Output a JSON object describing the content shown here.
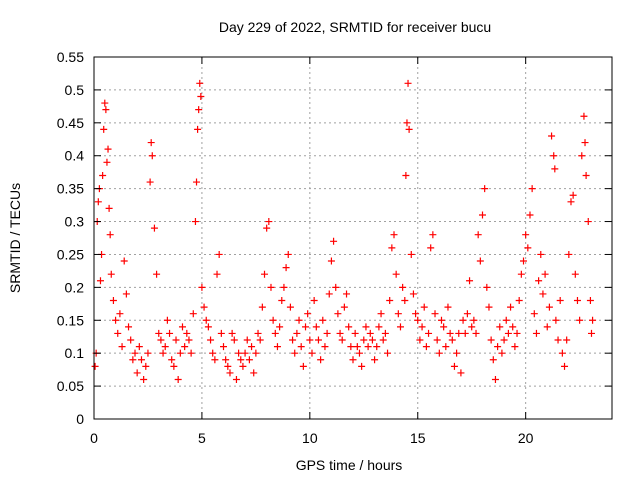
{
  "chart_data": {
    "type": "scatter",
    "title": "Day 229 of 2022, SRMTID for receiver bucu",
    "xlabel": "GPS time / hours",
    "ylabel": "SRMTID / TECUs",
    "xlim": [
      0,
      24
    ],
    "ylim": [
      0,
      0.55
    ],
    "xticks": [
      0,
      5,
      10,
      15,
      20
    ],
    "xtick_labels": [
      "0",
      "5",
      "10",
      "15",
      "20"
    ],
    "yticks": [
      0,
      0.05,
      0.1,
      0.15,
      0.2,
      0.25,
      0.3,
      0.35,
      0.4,
      0.45,
      0.5,
      0.55
    ],
    "ytick_labels": [
      "0",
      "0.05",
      "0.1",
      "0.15",
      "0.2",
      "0.25",
      "0.3",
      "0.35",
      "0.4",
      "0.45",
      "0.5",
      "0.55"
    ],
    "grid": true,
    "marker": "+",
    "color": "#ff0000",
    "series": [
      {
        "name": "SRMTID",
        "points": [
          [
            0.05,
            0.08
          ],
          [
            0.1,
            0.1
          ],
          [
            0.15,
            0.3
          ],
          [
            0.2,
            0.33
          ],
          [
            0.25,
            0.35
          ],
          [
            0.3,
            0.21
          ],
          [
            0.35,
            0.25
          ],
          [
            0.4,
            0.37
          ],
          [
            0.45,
            0.44
          ],
          [
            0.5,
            0.48
          ],
          [
            0.55,
            0.47
          ],
          [
            0.6,
            0.39
          ],
          [
            0.65,
            0.41
          ],
          [
            0.7,
            0.32
          ],
          [
            0.75,
            0.28
          ],
          [
            0.8,
            0.22
          ],
          [
            0.9,
            0.18
          ],
          [
            1.0,
            0.15
          ],
          [
            1.1,
            0.13
          ],
          [
            1.2,
            0.16
          ],
          [
            1.3,
            0.11
          ],
          [
            1.4,
            0.24
          ],
          [
            1.5,
            0.19
          ],
          [
            1.6,
            0.14
          ],
          [
            1.7,
            0.12
          ],
          [
            1.8,
            0.09
          ],
          [
            1.9,
            0.1
          ],
          [
            2.0,
            0.07
          ],
          [
            2.1,
            0.11
          ],
          [
            2.2,
            0.09
          ],
          [
            2.3,
            0.06
          ],
          [
            2.4,
            0.08
          ],
          [
            2.5,
            0.1
          ],
          [
            2.6,
            0.36
          ],
          [
            2.65,
            0.42
          ],
          [
            2.7,
            0.4
          ],
          [
            2.8,
            0.29
          ],
          [
            2.9,
            0.22
          ],
          [
            3.0,
            0.13
          ],
          [
            3.1,
            0.12
          ],
          [
            3.2,
            0.1
          ],
          [
            3.3,
            0.11
          ],
          [
            3.4,
            0.15
          ],
          [
            3.5,
            0.13
          ],
          [
            3.6,
            0.09
          ],
          [
            3.7,
            0.08
          ],
          [
            3.8,
            0.12
          ],
          [
            3.9,
            0.06
          ],
          [
            4.0,
            0.1
          ],
          [
            4.1,
            0.14
          ],
          [
            4.2,
            0.11
          ],
          [
            4.3,
            0.13
          ],
          [
            4.4,
            0.12
          ],
          [
            4.5,
            0.1
          ],
          [
            4.6,
            0.16
          ],
          [
            4.7,
            0.3
          ],
          [
            4.75,
            0.36
          ],
          [
            4.8,
            0.44
          ],
          [
            4.85,
            0.47
          ],
          [
            4.9,
            0.51
          ],
          [
            4.95,
            0.49
          ],
          [
            5.0,
            0.2
          ],
          [
            5.1,
            0.17
          ],
          [
            5.2,
            0.15
          ],
          [
            5.3,
            0.14
          ],
          [
            5.4,
            0.12
          ],
          [
            5.5,
            0.1
          ],
          [
            5.6,
            0.09
          ],
          [
            5.7,
            0.22
          ],
          [
            5.8,
            0.25
          ],
          [
            5.9,
            0.13
          ],
          [
            6.0,
            0.11
          ],
          [
            6.1,
            0.09
          ],
          [
            6.2,
            0.08
          ],
          [
            6.3,
            0.07
          ],
          [
            6.4,
            0.13
          ],
          [
            6.5,
            0.12
          ],
          [
            6.6,
            0.06
          ],
          [
            6.7,
            0.1
          ],
          [
            6.8,
            0.09
          ],
          [
            6.9,
            0.08
          ],
          [
            7.0,
            0.1
          ],
          [
            7.1,
            0.12
          ],
          [
            7.2,
            0.09
          ],
          [
            7.3,
            0.11
          ],
          [
            7.4,
            0.07
          ],
          [
            7.5,
            0.1
          ],
          [
            7.6,
            0.13
          ],
          [
            7.7,
            0.12
          ],
          [
            7.8,
            0.17
          ],
          [
            7.9,
            0.22
          ],
          [
            8.0,
            0.29
          ],
          [
            8.1,
            0.3
          ],
          [
            8.2,
            0.2
          ],
          [
            8.3,
            0.15
          ],
          [
            8.4,
            0.13
          ],
          [
            8.5,
            0.11
          ],
          [
            8.6,
            0.14
          ],
          [
            8.7,
            0.18
          ],
          [
            8.8,
            0.2
          ],
          [
            8.9,
            0.23
          ],
          [
            9.0,
            0.25
          ],
          [
            9.1,
            0.17
          ],
          [
            9.2,
            0.12
          ],
          [
            9.3,
            0.1
          ],
          [
            9.4,
            0.13
          ],
          [
            9.5,
            0.15
          ],
          [
            9.6,
            0.11
          ],
          [
            9.7,
            0.08
          ],
          [
            9.8,
            0.14
          ],
          [
            9.9,
            0.16
          ],
          [
            10.0,
            0.12
          ],
          [
            10.1,
            0.1
          ],
          [
            10.2,
            0.18
          ],
          [
            10.3,
            0.14
          ],
          [
            10.4,
            0.12
          ],
          [
            10.5,
            0.09
          ],
          [
            10.6,
            0.15
          ],
          [
            10.7,
            0.11
          ],
          [
            10.8,
            0.13
          ],
          [
            10.9,
            0.19
          ],
          [
            11.0,
            0.24
          ],
          [
            11.1,
            0.27
          ],
          [
            11.2,
            0.2
          ],
          [
            11.3,
            0.16
          ],
          [
            11.4,
            0.13
          ],
          [
            11.5,
            0.12
          ],
          [
            11.6,
            0.17
          ],
          [
            11.7,
            0.19
          ],
          [
            11.8,
            0.14
          ],
          [
            11.9,
            0.11
          ],
          [
            12.0,
            0.09
          ],
          [
            12.1,
            0.13
          ],
          [
            12.2,
            0.11
          ],
          [
            12.3,
            0.1
          ],
          [
            12.4,
            0.08
          ],
          [
            12.5,
            0.12
          ],
          [
            12.6,
            0.14
          ],
          [
            12.7,
            0.11
          ],
          [
            12.8,
            0.13
          ],
          [
            12.9,
            0.12
          ],
          [
            13.0,
            0.09
          ],
          [
            13.1,
            0.11
          ],
          [
            13.2,
            0.14
          ],
          [
            13.3,
            0.16
          ],
          [
            13.4,
            0.12
          ],
          [
            13.5,
            0.13
          ],
          [
            13.6,
            0.1
          ],
          [
            13.7,
            0.18
          ],
          [
            13.8,
            0.26
          ],
          [
            13.9,
            0.28
          ],
          [
            14.0,
            0.22
          ],
          [
            14.1,
            0.16
          ],
          [
            14.2,
            0.14
          ],
          [
            14.3,
            0.2
          ],
          [
            14.4,
            0.18
          ],
          [
            14.45,
            0.37
          ],
          [
            14.5,
            0.45
          ],
          [
            14.55,
            0.51
          ],
          [
            14.6,
            0.44
          ],
          [
            14.7,
            0.25
          ],
          [
            14.8,
            0.19
          ],
          [
            14.9,
            0.16
          ],
          [
            15.0,
            0.15
          ],
          [
            15.1,
            0.12
          ],
          [
            15.2,
            0.14
          ],
          [
            15.3,
            0.17
          ],
          [
            15.4,
            0.11
          ],
          [
            15.5,
            0.13
          ],
          [
            15.6,
            0.26
          ],
          [
            15.7,
            0.28
          ],
          [
            15.8,
            0.16
          ],
          [
            15.9,
            0.12
          ],
          [
            16.0,
            0.1
          ],
          [
            16.1,
            0.15
          ],
          [
            16.2,
            0.14
          ],
          [
            16.3,
            0.11
          ],
          [
            16.4,
            0.17
          ],
          [
            16.5,
            0.13
          ],
          [
            16.6,
            0.12
          ],
          [
            16.7,
            0.08
          ],
          [
            16.8,
            0.1
          ],
          [
            16.9,
            0.13
          ],
          [
            17.0,
            0.07
          ],
          [
            17.1,
            0.15
          ],
          [
            17.2,
            0.13
          ],
          [
            17.3,
            0.16
          ],
          [
            17.4,
            0.21
          ],
          [
            17.5,
            0.14
          ],
          [
            17.6,
            0.15
          ],
          [
            17.7,
            0.13
          ],
          [
            17.8,
            0.28
          ],
          [
            17.9,
            0.24
          ],
          [
            18.0,
            0.31
          ],
          [
            18.1,
            0.35
          ],
          [
            18.2,
            0.2
          ],
          [
            18.3,
            0.17
          ],
          [
            18.4,
            0.12
          ],
          [
            18.5,
            0.09
          ],
          [
            18.6,
            0.06
          ],
          [
            18.7,
            0.11
          ],
          [
            18.8,
            0.14
          ],
          [
            18.9,
            0.1
          ],
          [
            19.0,
            0.12
          ],
          [
            19.1,
            0.15
          ],
          [
            19.2,
            0.13
          ],
          [
            19.3,
            0.17
          ],
          [
            19.4,
            0.14
          ],
          [
            19.5,
            0.11
          ],
          [
            19.6,
            0.13
          ],
          [
            19.7,
            0.18
          ],
          [
            19.8,
            0.22
          ],
          [
            19.9,
            0.24
          ],
          [
            20.0,
            0.28
          ],
          [
            20.1,
            0.26
          ],
          [
            20.2,
            0.31
          ],
          [
            20.3,
            0.35
          ],
          [
            20.4,
            0.16
          ],
          [
            20.5,
            0.13
          ],
          [
            20.6,
            0.21
          ],
          [
            20.7,
            0.25
          ],
          [
            20.8,
            0.19
          ],
          [
            20.9,
            0.22
          ],
          [
            21.0,
            0.14
          ],
          [
            21.1,
            0.17
          ],
          [
            21.2,
            0.43
          ],
          [
            21.3,
            0.4
          ],
          [
            21.35,
            0.38
          ],
          [
            21.4,
            0.15
          ],
          [
            21.5,
            0.12
          ],
          [
            21.6,
            0.18
          ],
          [
            21.7,
            0.1
          ],
          [
            21.8,
            0.08
          ],
          [
            21.9,
            0.12
          ],
          [
            22.0,
            0.25
          ],
          [
            22.1,
            0.33
          ],
          [
            22.2,
            0.34
          ],
          [
            22.3,
            0.22
          ],
          [
            22.4,
            0.18
          ],
          [
            22.5,
            0.15
          ],
          [
            22.6,
            0.4
          ],
          [
            22.7,
            0.46
          ],
          [
            22.75,
            0.42
          ],
          [
            22.8,
            0.37
          ],
          [
            22.9,
            0.3
          ],
          [
            23.0,
            0.18
          ],
          [
            23.05,
            0.13
          ],
          [
            23.1,
            0.15
          ]
        ]
      }
    ]
  }
}
